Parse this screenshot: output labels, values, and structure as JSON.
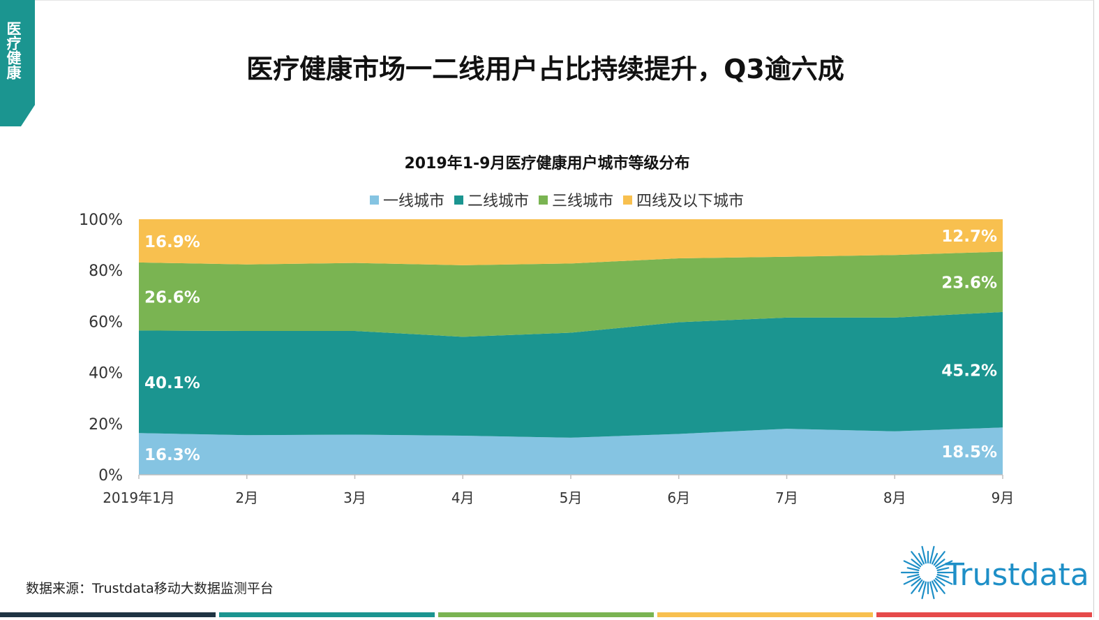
{
  "side_tab": {
    "label": "医疗健康"
  },
  "page_title": "医疗健康市场一二线用户占比持续提升，Q3逾六成",
  "source": "数据来源：Trustdata移动大数据监测平台",
  "logo": {
    "text": "Trustdata"
  },
  "colors": {
    "tier1": "#85c4e2",
    "tier2": "#1b9590",
    "tier3": "#7ab452",
    "tier4": "#f8c04f",
    "tab": "#1b9590",
    "bottom_bars": [
      "#1f3443",
      "#1b9590",
      "#7ab452",
      "#f8c04f",
      "#e64a4a"
    ]
  },
  "chart_data": {
    "type": "area",
    "stacked": true,
    "title": "2019年1-9月医疗健康用户城市等级分布",
    "categories": [
      "2019年1月",
      "2月",
      "3月",
      "4月",
      "5月",
      "6月",
      "7月",
      "8月",
      "9月"
    ],
    "ylim": [
      0,
      100
    ],
    "yticks": [
      "0%",
      "20%",
      "40%",
      "60%",
      "80%",
      "100%"
    ],
    "ytick_values": [
      0,
      20,
      40,
      60,
      80,
      100
    ],
    "legend_position": "top",
    "series": [
      {
        "name": "一线城市",
        "color": "#85c4e2",
        "values": [
          16.3,
          15.5,
          15.7,
          15.3,
          14.5,
          16.0,
          18.0,
          17.0,
          18.5
        ]
      },
      {
        "name": "二线城市",
        "color": "#1b9590",
        "values": [
          40.1,
          40.8,
          40.6,
          38.7,
          41.1,
          43.7,
          43.5,
          44.5,
          45.2
        ]
      },
      {
        "name": "三线城市",
        "color": "#7ab452",
        "values": [
          26.6,
          26.0,
          26.6,
          28.0,
          27.1,
          25.0,
          23.8,
          24.5,
          23.6
        ]
      },
      {
        "name": "四线及以下城市",
        "color": "#f8c04f",
        "values": [
          16.9,
          17.7,
          17.1,
          18.0,
          17.3,
          15.3,
          14.7,
          14.0,
          12.7
        ]
      }
    ],
    "labels_first": [
      "16.3%",
      "40.1%",
      "26.6%",
      "16.9%"
    ],
    "labels_last": [
      "18.5%",
      "45.2%",
      "23.6%",
      "12.7%"
    ]
  }
}
